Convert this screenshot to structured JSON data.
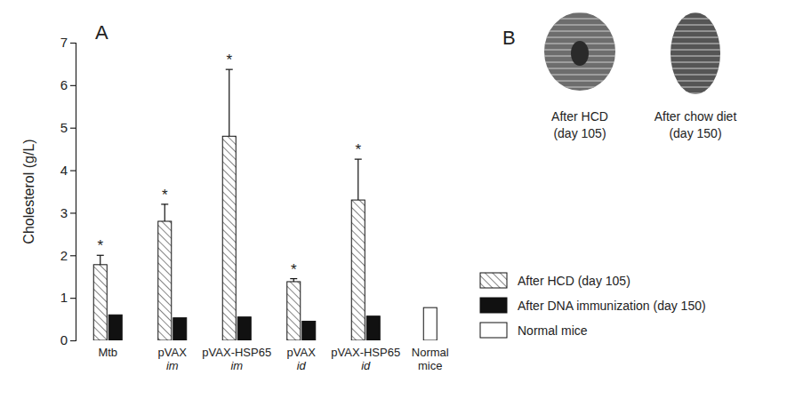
{
  "chart_data": {
    "type": "bar",
    "title": "A",
    "y_label": "Cholesterol (g/L)",
    "categories": [
      "Mtb",
      "pVAX im",
      "pVAX-HSP65 im",
      "pVAX id",
      "pVAX-HSP65 id",
      "Normal mice"
    ],
    "series": [
      {
        "name": "After HCD (day 105)",
        "color": "#333333",
        "line_style": "hatched",
        "values": [
          1.78,
          2.8,
          4.8,
          1.38,
          3.3,
          null
        ],
        "errors": [
          0.22,
          0.4,
          1.57,
          0.07,
          0.96,
          null
        ],
        "annotations": [
          "*",
          "*",
          "*",
          "*",
          "*",
          null
        ]
      },
      {
        "name": "After DNA immunization (day 150)",
        "color": "#111111",
        "line_style": "solid",
        "values": [
          0.6,
          0.53,
          0.55,
          0.45,
          0.57,
          null
        ]
      },
      {
        "name": "Normal mice",
        "color": "#ffffff",
        "line_style": "solid",
        "values": [
          null,
          null,
          null,
          null,
          null,
          0.77
        ]
      }
    ],
    "ylim": [
      0,
      7
    ],
    "yticks": [
      0,
      1,
      2,
      3,
      4,
      5,
      6,
      7
    ],
    "grid": false,
    "legend": "right"
  },
  "panel_b": {
    "label": "B",
    "images": [
      {
        "caption": [
          "After HCD",
          "(day 105)"
        ]
      },
      {
        "caption": [
          "After chow diet",
          "(day 150)"
        ]
      }
    ]
  }
}
